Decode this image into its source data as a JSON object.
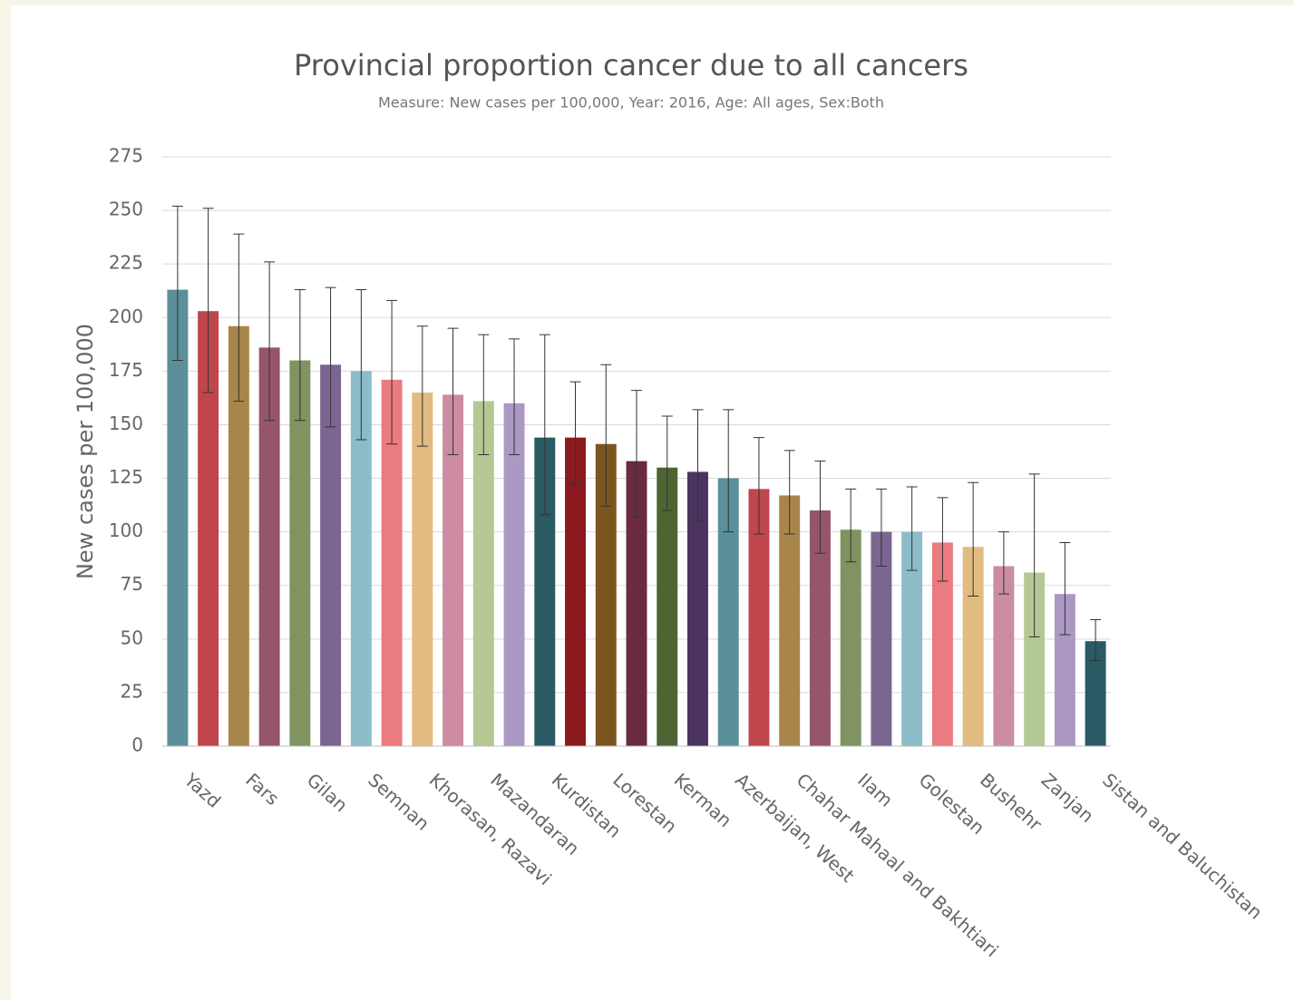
{
  "chart_data": {
    "type": "bar",
    "title": "Provincial proportion cancer due to all cancers",
    "subtitle": "Measure: New cases per 100,000, Year: 2016, Age: All ages, Sex:Both",
    "y_label": "New cases per 100,000",
    "categories": [
      "Yazd",
      null,
      "Fars",
      null,
      "Gilan",
      null,
      "Semnan",
      null,
      "Khorasan, Razavi",
      null,
      "Mazandaran",
      null,
      "Kurdistan",
      null,
      "Lorestan",
      null,
      "Kerman",
      null,
      "Azerbaijan, West",
      null,
      "Chahar Mahaal and Bakhtiari",
      null,
      "Ilam",
      null,
      "Golestan",
      null,
      "Bushehr",
      null,
      "Zanjan",
      null,
      "Sistan and Baluchistan"
    ],
    "values": [
      213,
      203,
      196,
      186,
      180,
      178,
      175,
      171,
      165,
      164,
      161,
      160,
      144,
      144,
      141,
      133,
      130,
      128,
      125,
      120,
      117,
      110,
      101,
      100,
      100,
      95,
      93,
      84,
      81,
      71,
      49
    ],
    "lower": [
      180,
      165,
      161,
      152,
      152,
      149,
      143,
      141,
      140,
      136,
      136,
      136,
      108,
      122,
      112,
      107,
      110,
      105,
      100,
      99,
      99,
      90,
      86,
      84,
      82,
      77,
      70,
      71,
      51,
      52,
      40
    ],
    "upper": [
      252,
      251,
      239,
      226,
      213,
      214,
      213,
      208,
      196,
      195,
      192,
      190,
      192,
      170,
      178,
      166,
      154,
      157,
      157,
      144,
      138,
      133,
      120,
      120,
      121,
      116,
      123,
      100,
      127,
      95,
      59
    ],
    "colors": [
      "#5b8f99",
      "#c0464e",
      "#a8854a",
      "#945668",
      "#7f9460",
      "#7a6690",
      "#8cbcc8",
      "#ea7b80",
      "#e2bb80",
      "#cc8ca0",
      "#b4c894",
      "#ab98c3",
      "#2a5a63",
      "#8b1a20",
      "#7a561e",
      "#6a2b3f",
      "#4e6432",
      "#4b355f",
      "#5b8f99",
      "#c0464e",
      "#a8854a",
      "#945668",
      "#7f9460",
      "#7a6690",
      "#8cbcc8",
      "#ea7b80",
      "#e2bb80",
      "#cc8ca0",
      "#b4c894",
      "#ab98c3",
      "#2a5a63"
    ],
    "ylim": [
      0,
      275
    ],
    "yticks": [
      0,
      25,
      50,
      75,
      100,
      125,
      150,
      175,
      200,
      225,
      250,
      275
    ],
    "grid": true
  }
}
